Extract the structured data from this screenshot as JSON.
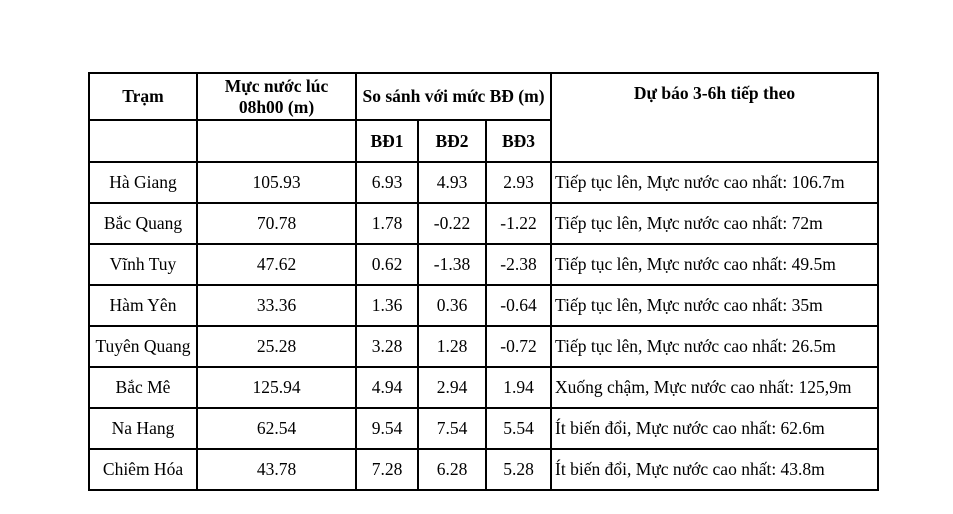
{
  "colors": {
    "border": "#000000",
    "text": "#000000",
    "background": "#ffffff"
  },
  "table": {
    "headers": {
      "station": "Trạm",
      "water_level": "Mực nước lúc 08h00 (m)",
      "comparison": "So sánh với mức BĐ (m)",
      "bd1": "BĐ1",
      "bd2": "BĐ2",
      "bd3": "BĐ3",
      "forecast": "Dự báo 3-6h tiếp theo"
    },
    "rows": [
      {
        "station": "Hà Giang",
        "level": "105.93",
        "bd1": "6.93",
        "bd2": "4.93",
        "bd3": "2.93",
        "forecast": "Tiếp tục lên, Mực nước cao nhất: 106.7m"
      },
      {
        "station": "Bắc Quang",
        "level": "70.78",
        "bd1": "1.78",
        "bd2": "-0.22",
        "bd3": "-1.22",
        "forecast": "Tiếp tục lên, Mực nước cao nhất: 72m"
      },
      {
        "station": "Vĩnh Tuy",
        "level": "47.62",
        "bd1": "0.62",
        "bd2": "-1.38",
        "bd3": "-2.38",
        "forecast": "Tiếp tục lên, Mực nước cao nhất: 49.5m"
      },
      {
        "station": "Hàm Yên",
        "level": "33.36",
        "bd1": "1.36",
        "bd2": "0.36",
        "bd3": "-0.64",
        "forecast": "Tiếp tục lên, Mực nước cao nhất: 35m"
      },
      {
        "station": "Tuyên Quang",
        "level": "25.28",
        "bd1": "3.28",
        "bd2": "1.28",
        "bd3": "-0.72",
        "forecast": "Tiếp tục lên, Mực nước cao nhất: 26.5m"
      },
      {
        "station": "Bắc Mê",
        "level": "125.94",
        "bd1": "4.94",
        "bd2": "2.94",
        "bd3": "1.94",
        "forecast": "Xuống chậm, Mực nước cao nhất: 125,9m"
      },
      {
        "station": "Na Hang",
        "level": "62.54",
        "bd1": "9.54",
        "bd2": "7.54",
        "bd3": "5.54",
        "forecast": "Ít biến đổi, Mực nước cao nhất: 62.6m"
      },
      {
        "station": "Chiêm Hóa",
        "level": "43.78",
        "bd1": "7.28",
        "bd2": "6.28",
        "bd3": "5.28",
        "forecast": "Ít biến đổi, Mực nước cao nhất: 43.8m"
      }
    ]
  }
}
